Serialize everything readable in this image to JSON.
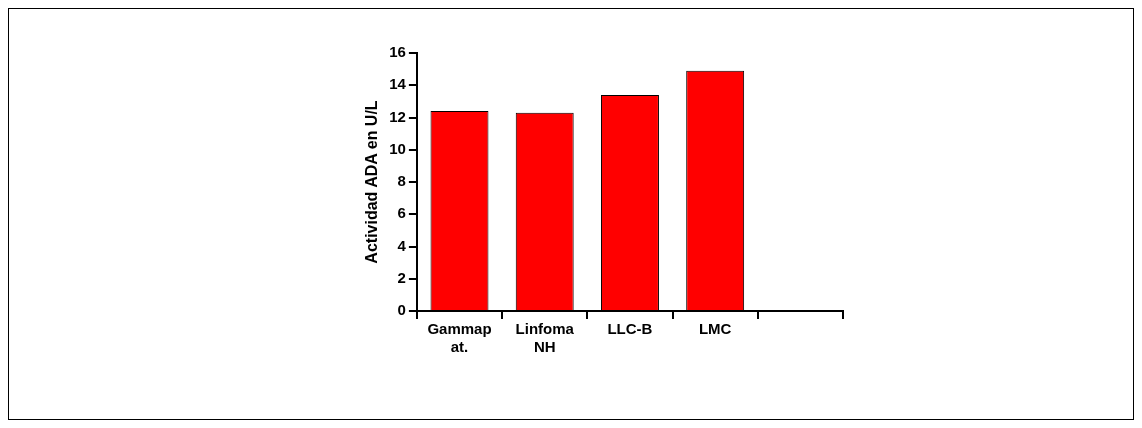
{
  "chart_data": {
    "type": "bar",
    "ylabel": "Actividad ADA en U/L",
    "categories": [
      "Gammap at.",
      "Linfoma NH",
      "LLC-B",
      "LMC",
      null
    ],
    "values": [
      12.4,
      12.3,
      13.4,
      14.9,
      null
    ],
    "color": "#ff0000",
    "ylim": [
      0,
      16
    ],
    "yticks": [
      0,
      2,
      4,
      6,
      8,
      10,
      12,
      14,
      16
    ],
    "grid": false,
    "legend": false
  }
}
